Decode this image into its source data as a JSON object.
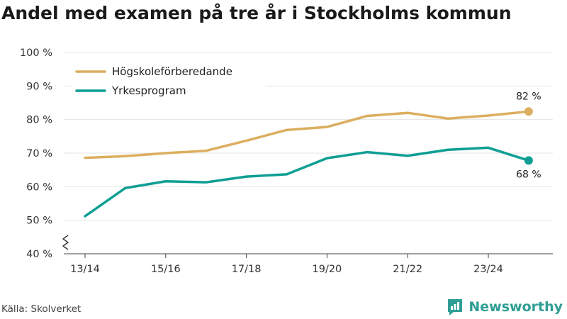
{
  "title": "Andel med examen på tre år i Stockholms kommun",
  "source": "Källa: Skolverket",
  "brand": "Newsworthy",
  "colors": {
    "series1": "#dcae60",
    "series2": "#0e9e94",
    "brand": "#2f9e94"
  },
  "chart_data": {
    "type": "line",
    "title": "Andel med examen på tre år i Stockholms kommun",
    "x": [
      "13/14",
      "14/15",
      "15/16",
      "16/17",
      "17/18",
      "18/19",
      "19/20",
      "20/21",
      "21/22",
      "22/23",
      "23/24",
      "24/25"
    ],
    "xticks": [
      "13/14",
      "15/16",
      "17/18",
      "19/20",
      "21/22",
      "23/24"
    ],
    "ylim": [
      40,
      100
    ],
    "yticks": [
      40,
      50,
      60,
      70,
      80,
      90,
      100
    ],
    "ytick_suffix": " %",
    "axis_break": true,
    "grid": true,
    "legend_position": "top-left",
    "series": [
      {
        "name": "Högskoleförberedande",
        "values": [
          68.6,
          69.1,
          70.0,
          70.7,
          73.7,
          76.9,
          77.8,
          81.1,
          82.0,
          80.3,
          81.2,
          82.4
        ],
        "end_label": "82 %"
      },
      {
        "name": "Yrkesprogram",
        "values": [
          51.2,
          59.6,
          61.6,
          61.3,
          63.0,
          63.7,
          68.5,
          70.3,
          69.2,
          71.0,
          71.6,
          67.8
        ],
        "end_label": "68 %"
      }
    ]
  }
}
